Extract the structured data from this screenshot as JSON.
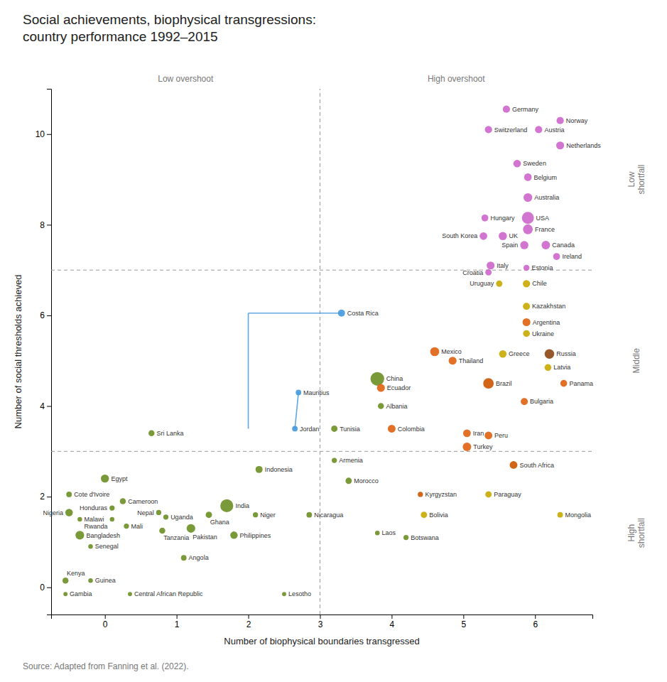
{
  "chart_data": {
    "type": "scatter",
    "title": "Social achievements, biophysical transgressions:\ncountry performance 1992–2015",
    "x_label": "Number of biophysical boundaries transgressed",
    "y_label": "Number of social thresholds achieved",
    "xlim": [
      -0.75,
      6.8
    ],
    "ylim": [
      -0.6,
      11.0
    ],
    "xticks": [
      0,
      1,
      2,
      3,
      4,
      5,
      6
    ],
    "yticks": [
      0,
      2,
      4,
      6,
      8,
      10
    ],
    "grid": false,
    "reference_lines": {
      "x": [
        3.0
      ],
      "y": [
        7.0,
        3.0
      ]
    },
    "annotations": {
      "x_zones": [
        "Low overshoot",
        "High overshoot"
      ],
      "y_zones": [
        "Low\nshortfall",
        "Middle",
        "High\nshortfall"
      ],
      "source": "Source: Adapted from Fanning et al. (2022)."
    },
    "series": [
      {
        "type": "line",
        "color": "#4499dd",
        "x": [
          2.0,
          3.3,
          null,
          2.0,
          2.0,
          null,
          2.65,
          2.7
        ],
        "values": [
          6.05,
          6.05,
          null,
          6.05,
          3.5,
          null,
          3.5,
          4.3
        ]
      },
      {
        "type": "scatter",
        "labels": [
          "Norway",
          "Germany",
          "Switzerland",
          "Austria",
          "Netherlands",
          "Sweden",
          "Belgium",
          "Australia",
          "USA",
          "France",
          "Hungary",
          "South Korea",
          "UK",
          "Spain",
          "Canada",
          "Ireland",
          "Italy",
          "Croatia",
          "Estonia",
          "Uruguay",
          "Chile",
          "Kazakhstan",
          "Argentina",
          "Ukraine",
          "Mexico",
          "Greece",
          "Thailand",
          "Russia",
          "Latvia",
          "China",
          "Brazil",
          "Ecuador",
          "Albania",
          "Panama",
          "Bulgaria",
          "Costa Rica",
          "Jordan",
          "Mauritius",
          "Colombia",
          "Iran",
          "Peru",
          "Turkey",
          "Tunisia",
          "Sri Lanka",
          "Armenia",
          "Indonesia",
          "Morocco",
          "South Africa",
          "Egypt",
          "Kyrgyzstan",
          "Paraguay",
          "Cote d'Ivoire",
          "Cameroon",
          "Honduras",
          "India",
          "Nepal",
          "Uganda",
          "Ghana",
          "Niger",
          "Nicaragua",
          "Bolivia",
          "Nigeria",
          "Malawi",
          "Rwanda",
          "Mali",
          "Pakistan",
          "Tanzania",
          "Philippines",
          "Bangladesh",
          "Senegal",
          "Angola",
          "Mongolia",
          "Laos",
          "Botswana",
          "Kenya",
          "Guinea",
          "Gambia",
          "Central African Republic",
          "Lesotho"
        ],
        "x": [
          6.35,
          5.6,
          5.35,
          6.05,
          6.35,
          5.75,
          5.9,
          5.9,
          5.9,
          5.9,
          5.3,
          5.28,
          5.55,
          5.85,
          6.15,
          6.3,
          5.38,
          5.35,
          5.88,
          5.5,
          5.88,
          5.88,
          5.88,
          5.88,
          4.6,
          5.55,
          4.85,
          6.2,
          6.18,
          3.8,
          5.35,
          3.85,
          3.85,
          6.4,
          5.85,
          3.3,
          2.65,
          2.7,
          4.0,
          5.05,
          5.35,
          5.05,
          3.2,
          0.65,
          3.2,
          2.15,
          3.4,
          5.7,
          0.0,
          4.4,
          5.35,
          -0.5,
          0.25,
          0.1,
          1.7,
          0.75,
          0.85,
          1.45,
          2.1,
          2.85,
          4.45,
          -0.5,
          -0.35,
          0.1,
          0.3,
          1.2,
          0.8,
          1.8,
          -0.35,
          -0.2,
          1.1,
          6.35,
          3.8,
          4.2,
          -0.55,
          -0.2,
          -0.55,
          0.35,
          2.5
        ],
        "values": [
          10.3,
          10.55,
          10.1,
          10.1,
          9.75,
          9.35,
          9.05,
          8.6,
          8.15,
          7.9,
          8.15,
          7.75,
          7.75,
          7.55,
          7.55,
          7.3,
          7.1,
          6.95,
          7.05,
          6.7,
          6.7,
          6.2,
          5.85,
          5.6,
          5.2,
          5.15,
          5.0,
          5.15,
          4.85,
          4.6,
          4.5,
          4.4,
          4.0,
          4.5,
          4.1,
          6.05,
          3.5,
          4.3,
          3.5,
          3.4,
          3.35,
          3.1,
          3.5,
          3.4,
          2.8,
          2.6,
          2.35,
          2.7,
          2.4,
          2.05,
          2.05,
          2.05,
          1.9,
          1.75,
          1.8,
          1.65,
          1.55,
          1.6,
          1.6,
          1.6,
          1.6,
          1.65,
          1.5,
          1.5,
          1.35,
          1.3,
          1.25,
          1.15,
          1.15,
          0.9,
          0.65,
          1.6,
          1.2,
          1.1,
          0.15,
          0.15,
          -0.15,
          -0.15,
          -0.15
        ],
        "sizes": [
          55,
          55,
          55,
          55,
          65,
          60,
          60,
          80,
          150,
          100,
          50,
          60,
          70,
          70,
          75,
          50,
          65,
          42,
          38,
          42,
          55,
          52,
          65,
          48,
          85,
          58,
          65,
          95,
          48,
          195,
          115,
          65,
          38,
          48,
          52,
          52,
          32,
          32,
          62,
          62,
          62,
          75,
          42,
          38,
          28,
          52,
          42,
          62,
          68,
          28,
          42,
          32,
          38,
          28,
          175,
          28,
          28,
          42,
          28,
          32,
          42,
          58,
          22,
          22,
          28,
          78,
          38,
          58,
          78,
          22,
          32,
          32,
          22,
          28,
          38,
          22,
          18,
          18,
          18
        ],
        "colors": [
          "#cc66cc",
          "#cc66cc",
          "#cc66cc",
          "#cc66cc",
          "#cc66cc",
          "#cc66cc",
          "#cc66cc",
          "#cc66cc",
          "#cc66cc",
          "#cc66cc",
          "#cc66cc",
          "#cc66cc",
          "#cc66cc",
          "#cc66cc",
          "#cc66cc",
          "#cc66cc",
          "#cc66cc",
          "#cc66cc",
          "#cc66cc",
          "#c8a800",
          "#c8a800",
          "#c8a800",
          "#e06010",
          "#c8a800",
          "#e06010",
          "#c8a800",
          "#e06010",
          "#8B4513",
          "#c8a800",
          "#6B8E23",
          "#cc5500",
          "#e06010",
          "#6B8E23",
          "#e06010",
          "#e06010",
          "#4499dd",
          "#4499dd",
          "#4499dd",
          "#e06010",
          "#e06010",
          "#e06010",
          "#e06010",
          "#6B8E23",
          "#6B8E23",
          "#6B8E23",
          "#6B8E23",
          "#6B8E23",
          "#cc5500",
          "#6B8E23",
          "#cc5500",
          "#c8a800",
          "#6B8E23",
          "#6B8E23",
          "#6B8E23",
          "#6B8E23",
          "#6B8E23",
          "#6B8E23",
          "#6B8E23",
          "#6B8E23",
          "#6B8E23",
          "#c8a800",
          "#6B8E23",
          "#6B8E23",
          "#6B8E23",
          "#6B8E23",
          "#6B8E23",
          "#6B8E23",
          "#6B8E23",
          "#6B8E23",
          "#6B8E23",
          "#6B8E23",
          "#c8a800",
          "#6B8E23",
          "#6B8E23",
          "#6B8E23",
          "#6B8E23",
          "#6B8E23",
          "#6B8E23",
          "#6B8E23"
        ]
      }
    ]
  }
}
